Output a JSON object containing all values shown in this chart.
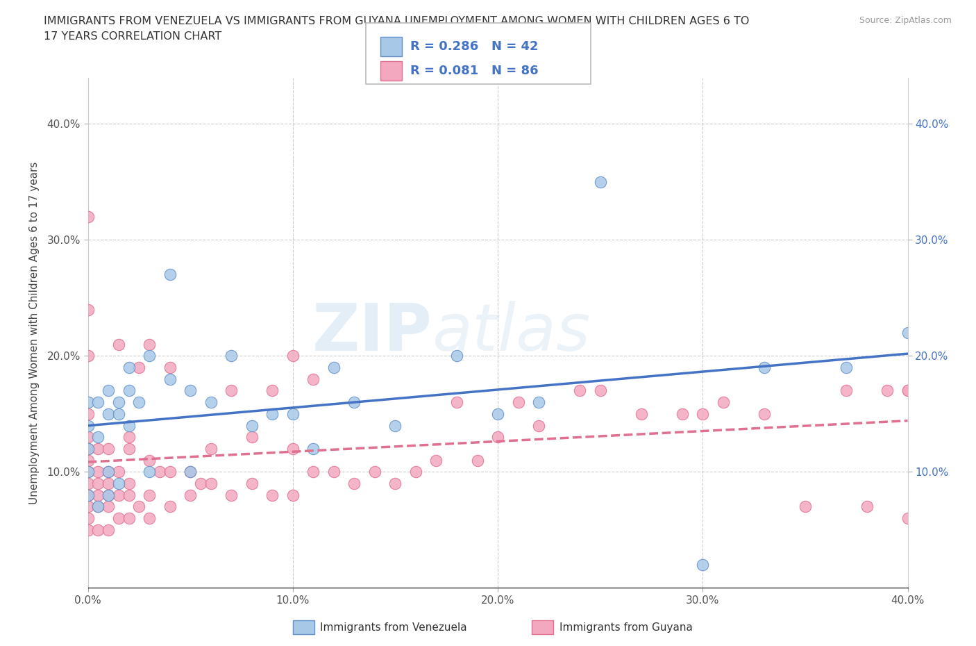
{
  "title_line1": "IMMIGRANTS FROM VENEZUELA VS IMMIGRANTS FROM GUYANA UNEMPLOYMENT AMONG WOMEN WITH CHILDREN AGES 6 TO",
  "title_line2": "17 YEARS CORRELATION CHART",
  "source": "Source: ZipAtlas.com",
  "ylabel": "Unemployment Among Women with Children Ages 6 to 17 years",
  "xlim": [
    0.0,
    0.4
  ],
  "ylim": [
    0.0,
    0.44
  ],
  "xticks": [
    0.0,
    0.1,
    0.2,
    0.3,
    0.4
  ],
  "yticks": [
    0.1,
    0.2,
    0.3,
    0.4
  ],
  "xtick_labels": [
    "0.0%",
    "10.0%",
    "20.0%",
    "30.0%",
    "40.0%"
  ],
  "ytick_labels_left": [
    "10.0%",
    "20.0%",
    "30.0%",
    "40.0%"
  ],
  "ytick_labels_right": [
    "10.0%",
    "20.0%",
    "30.0%",
    "40.0%"
  ],
  "grid_color": "#cccccc",
  "background_color": "#ffffff",
  "watermark_zip": "ZIP",
  "watermark_atlas": "atlas",
  "venezuela_color": "#a8c8e8",
  "guyana_color": "#f4a8bf",
  "venezuela_edge_color": "#6090c8",
  "guyana_edge_color": "#e07090",
  "venezuela_line_color": "#4472c4",
  "guyana_line_color": "#e07090",
  "R_text_color": "#4472c4",
  "venezuela_x": [
    0.0,
    0.0,
    0.0,
    0.0,
    0.0,
    0.005,
    0.005,
    0.005,
    0.01,
    0.01,
    0.01,
    0.01,
    0.015,
    0.015,
    0.015,
    0.02,
    0.02,
    0.02,
    0.025,
    0.03,
    0.03,
    0.04,
    0.04,
    0.05,
    0.05,
    0.06,
    0.07,
    0.08,
    0.09,
    0.1,
    0.11,
    0.12,
    0.13,
    0.15,
    0.18,
    0.2,
    0.22,
    0.25,
    0.3,
    0.33,
    0.37,
    0.4
  ],
  "venezuela_y": [
    0.08,
    0.1,
    0.12,
    0.14,
    0.16,
    0.07,
    0.13,
    0.16,
    0.08,
    0.1,
    0.15,
    0.17,
    0.09,
    0.15,
    0.16,
    0.14,
    0.17,
    0.19,
    0.16,
    0.1,
    0.2,
    0.18,
    0.27,
    0.1,
    0.17,
    0.16,
    0.2,
    0.14,
    0.15,
    0.15,
    0.12,
    0.19,
    0.16,
    0.14,
    0.2,
    0.15,
    0.16,
    0.35,
    0.02,
    0.19,
    0.19,
    0.22
  ],
  "guyana_x": [
    0.0,
    0.0,
    0.0,
    0.0,
    0.0,
    0.0,
    0.0,
    0.0,
    0.0,
    0.0,
    0.0,
    0.0,
    0.0,
    0.0,
    0.005,
    0.005,
    0.005,
    0.005,
    0.005,
    0.005,
    0.01,
    0.01,
    0.01,
    0.01,
    0.01,
    0.01,
    0.015,
    0.015,
    0.015,
    0.015,
    0.02,
    0.02,
    0.02,
    0.02,
    0.02,
    0.025,
    0.025,
    0.03,
    0.03,
    0.03,
    0.03,
    0.035,
    0.04,
    0.04,
    0.04,
    0.05,
    0.05,
    0.055,
    0.06,
    0.06,
    0.07,
    0.07,
    0.08,
    0.08,
    0.09,
    0.09,
    0.1,
    0.1,
    0.1,
    0.11,
    0.11,
    0.12,
    0.13,
    0.14,
    0.15,
    0.16,
    0.17,
    0.18,
    0.19,
    0.2,
    0.21,
    0.22,
    0.24,
    0.25,
    0.27,
    0.29,
    0.3,
    0.31,
    0.33,
    0.35,
    0.37,
    0.38,
    0.39,
    0.4,
    0.4,
    0.4
  ],
  "guyana_y": [
    0.05,
    0.06,
    0.07,
    0.08,
    0.08,
    0.09,
    0.1,
    0.11,
    0.12,
    0.13,
    0.15,
    0.2,
    0.24,
    0.32,
    0.05,
    0.07,
    0.08,
    0.09,
    0.1,
    0.12,
    0.05,
    0.07,
    0.08,
    0.09,
    0.1,
    0.12,
    0.06,
    0.08,
    0.1,
    0.21,
    0.06,
    0.08,
    0.09,
    0.12,
    0.13,
    0.07,
    0.19,
    0.06,
    0.08,
    0.11,
    0.21,
    0.1,
    0.07,
    0.1,
    0.19,
    0.08,
    0.1,
    0.09,
    0.09,
    0.12,
    0.08,
    0.17,
    0.09,
    0.13,
    0.08,
    0.17,
    0.08,
    0.12,
    0.2,
    0.1,
    0.18,
    0.1,
    0.09,
    0.1,
    0.09,
    0.1,
    0.11,
    0.16,
    0.11,
    0.13,
    0.16,
    0.14,
    0.17,
    0.17,
    0.15,
    0.15,
    0.15,
    0.16,
    0.15,
    0.07,
    0.17,
    0.07,
    0.17,
    0.06,
    0.17,
    0.17
  ]
}
